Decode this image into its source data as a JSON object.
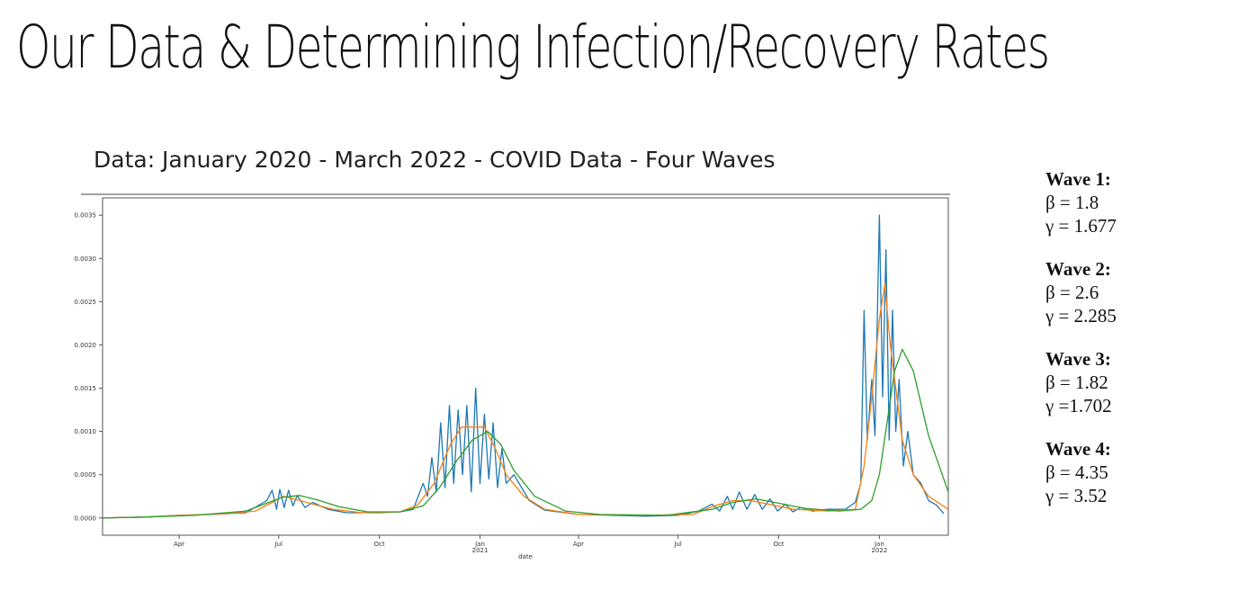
{
  "title": "Our Data & Determining Infection/Recovery Rates",
  "waves": [
    {
      "label": "Wave 1:",
      "beta": "β = 1.8",
      "gamma": "γ = 1.677"
    },
    {
      "label": "Wave 2:",
      "beta": "β = 2.6",
      "gamma": "γ = 2.285"
    },
    {
      "label": "Wave 3:",
      "beta": "β = 1.82",
      "gamma": "γ =1.702"
    },
    {
      "label": "Wave 4:",
      "beta": "β = 4.35",
      "gamma": "γ = 3.52"
    }
  ],
  "chart_data": {
    "type": "line",
    "title": "Data: January 2020 - March 2022 - COVID Data - Four Waves",
    "xlabel": "date",
    "ylabel": "",
    "xlim": [
      "2020-01-22",
      "2022-03-05"
    ],
    "ylim": [
      -0.0002,
      0.0037
    ],
    "grid": false,
    "legend": "none",
    "yticks": [
      "0.0000",
      "0.0005",
      "0.0010",
      "0.0015",
      "0.0020",
      "0.0025",
      "0.0030",
      "0.0035"
    ],
    "ytick_values": [
      0,
      0.0005,
      0.001,
      0.0015,
      0.002,
      0.0025,
      0.003,
      0.0035
    ],
    "xticks": [
      {
        "date": "2020-04-01",
        "label": "Apr",
        "sub": ""
      },
      {
        "date": "2020-07-01",
        "label": "Jul",
        "sub": ""
      },
      {
        "date": "2020-10-01",
        "label": "Oct",
        "sub": ""
      },
      {
        "date": "2021-01-01",
        "label": "Jan",
        "sub": "2021"
      },
      {
        "date": "2021-04-01",
        "label": "Apr",
        "sub": ""
      },
      {
        "date": "2021-07-01",
        "label": "Jul",
        "sub": ""
      },
      {
        "date": "2021-10-01",
        "label": "Oct",
        "sub": ""
      },
      {
        "date": "2022-01-01",
        "label": "Jan",
        "sub": "2022"
      }
    ],
    "series": [
      {
        "color": "#1f77b4",
        "points": [
          [
            "2020-01-22",
            0
          ],
          [
            "2020-03-01",
            1e-05
          ],
          [
            "2020-04-01",
            3e-05
          ],
          [
            "2020-05-01",
            4e-05
          ],
          [
            "2020-06-01",
            6e-05
          ],
          [
            "2020-06-20",
            0.0002
          ],
          [
            "2020-06-25",
            0.00032
          ],
          [
            "2020-06-29",
            0.0001
          ],
          [
            "2020-07-02",
            0.00033
          ],
          [
            "2020-07-06",
            0.00012
          ],
          [
            "2020-07-10",
            0.00032
          ],
          [
            "2020-07-14",
            0.00014
          ],
          [
            "2020-07-18",
            0.00026
          ],
          [
            "2020-07-25",
            0.00012
          ],
          [
            "2020-08-01",
            0.00018
          ],
          [
            "2020-08-15",
            0.0001
          ],
          [
            "2020-09-01",
            6e-05
          ],
          [
            "2020-10-01",
            6e-05
          ],
          [
            "2020-10-20",
            7e-05
          ],
          [
            "2020-11-01",
            0.0001
          ],
          [
            "2020-11-10",
            0.0004
          ],
          [
            "2020-11-14",
            0.00025
          ],
          [
            "2020-11-18",
            0.0007
          ],
          [
            "2020-11-22",
            0.0003
          ],
          [
            "2020-11-26",
            0.0011
          ],
          [
            "2020-11-30",
            0.00035
          ],
          [
            "2020-12-04",
            0.0013
          ],
          [
            "2020-12-08",
            0.0004
          ],
          [
            "2020-12-12",
            0.00125
          ],
          [
            "2020-12-16",
            0.0005
          ],
          [
            "2020-12-20",
            0.0013
          ],
          [
            "2020-12-24",
            0.0003
          ],
          [
            "2020-12-28",
            0.0015
          ],
          [
            "2021-01-01",
            0.0004
          ],
          [
            "2021-01-05",
            0.0012
          ],
          [
            "2021-01-09",
            0.00045
          ],
          [
            "2021-01-13",
            0.0011
          ],
          [
            "2021-01-17",
            0.00035
          ],
          [
            "2021-01-21",
            0.0008
          ],
          [
            "2021-01-25",
            0.0004
          ],
          [
            "2021-02-01",
            0.0005
          ],
          [
            "2021-02-15",
            0.0002
          ],
          [
            "2021-03-01",
            9e-05
          ],
          [
            "2021-04-01",
            4e-05
          ],
          [
            "2021-05-01",
            3e-05
          ],
          [
            "2021-06-01",
            2e-05
          ],
          [
            "2021-07-01",
            3e-05
          ],
          [
            "2021-07-20",
            8e-05
          ],
          [
            "2021-08-01",
            0.00016
          ],
          [
            "2021-08-08",
            8e-05
          ],
          [
            "2021-08-15",
            0.00025
          ],
          [
            "2021-08-20",
            0.0001
          ],
          [
            "2021-08-26",
            0.0003
          ],
          [
            "2021-09-02",
            0.0001
          ],
          [
            "2021-09-09",
            0.00027
          ],
          [
            "2021-09-16",
            0.0001
          ],
          [
            "2021-09-23",
            0.00022
          ],
          [
            "2021-09-30",
            8e-05
          ],
          [
            "2021-10-07",
            0.00016
          ],
          [
            "2021-10-14",
            7e-05
          ],
          [
            "2021-10-21",
            0.00012
          ],
          [
            "2021-11-01",
            8e-05
          ],
          [
            "2021-11-15",
            0.0001
          ],
          [
            "2021-12-01",
            0.0001
          ],
          [
            "2021-12-10",
            0.00018
          ],
          [
            "2021-12-15",
            0.0004
          ],
          [
            "2021-12-18",
            0.0024
          ],
          [
            "2021-12-21",
            0.0009
          ],
          [
            "2021-12-25",
            0.0016
          ],
          [
            "2021-12-28",
            0.00095
          ],
          [
            "2022-01-01",
            0.0035
          ],
          [
            "2022-01-04",
            0.0014
          ],
          [
            "2022-01-07",
            0.0031
          ],
          [
            "2022-01-10",
            0.0009
          ],
          [
            "2022-01-13",
            0.0024
          ],
          [
            "2022-01-16",
            0.001
          ],
          [
            "2022-01-19",
            0.0016
          ],
          [
            "2022-01-23",
            0.0006
          ],
          [
            "2022-01-27",
            0.001
          ],
          [
            "2022-02-01",
            0.0005
          ],
          [
            "2022-02-08",
            0.0004
          ],
          [
            "2022-02-15",
            0.0002
          ],
          [
            "2022-02-22",
            0.00015
          ],
          [
            "2022-03-01",
            5e-05
          ]
        ]
      },
      {
        "color": "#ff7f0e",
        "points": [
          [
            "2020-01-22",
            0
          ],
          [
            "2020-03-01",
            1e-05
          ],
          [
            "2020-04-01",
            3e-05
          ],
          [
            "2020-05-15",
            5e-05
          ],
          [
            "2020-06-10",
            8e-05
          ],
          [
            "2020-06-25",
            0.00018
          ],
          [
            "2020-07-05",
            0.00025
          ],
          [
            "2020-07-15",
            0.00022
          ],
          [
            "2020-08-01",
            0.00016
          ],
          [
            "2020-08-20",
            0.0001
          ],
          [
            "2020-09-15",
            6e-05
          ],
          [
            "2020-10-20",
            7e-05
          ],
          [
            "2020-11-05",
            0.00015
          ],
          [
            "2020-11-20",
            0.0004
          ],
          [
            "2020-12-05",
            0.00085
          ],
          [
            "2020-12-15",
            0.00105
          ],
          [
            "2020-12-25",
            0.00105
          ],
          [
            "2021-01-05",
            0.00105
          ],
          [
            "2021-01-15",
            0.0008
          ],
          [
            "2021-01-25",
            0.0005
          ],
          [
            "2021-02-10",
            0.00025
          ],
          [
            "2021-03-01",
            0.0001
          ],
          [
            "2021-04-01",
            4e-05
          ],
          [
            "2021-06-01",
            3e-05
          ],
          [
            "2021-07-15",
            4e-05
          ],
          [
            "2021-08-01",
            0.00013
          ],
          [
            "2021-08-20",
            0.0002
          ],
          [
            "2021-09-05",
            0.0002
          ],
          [
            "2021-09-25",
            0.00015
          ],
          [
            "2021-10-15",
            0.0001
          ],
          [
            "2021-11-15",
            8e-05
          ],
          [
            "2021-12-10",
            0.0001
          ],
          [
            "2021-12-18",
            0.0006
          ],
          [
            "2021-12-25",
            0.0014
          ],
          [
            "2022-01-01",
            0.0023
          ],
          [
            "2022-01-06",
            0.0027
          ],
          [
            "2022-01-11",
            0.002
          ],
          [
            "2022-01-16",
            0.0015
          ],
          [
            "2022-01-22",
            0.0009
          ],
          [
            "2022-02-01",
            0.0005
          ],
          [
            "2022-02-15",
            0.00025
          ],
          [
            "2022-03-05",
            0.0001
          ]
        ]
      },
      {
        "color": "#2ca02c",
        "points": [
          [
            "2020-01-22",
            0
          ],
          [
            "2020-03-01",
            1e-05
          ],
          [
            "2020-04-15",
            3e-05
          ],
          [
            "2020-06-01",
            8e-05
          ],
          [
            "2020-06-20",
            0.00017
          ],
          [
            "2020-07-05",
            0.00024
          ],
          [
            "2020-07-20",
            0.00026
          ],
          [
            "2020-08-05",
            0.00021
          ],
          [
            "2020-08-25",
            0.00013
          ],
          [
            "2020-09-20",
            7e-05
          ],
          [
            "2020-10-20",
            7e-05
          ],
          [
            "2020-11-10",
            0.00014
          ],
          [
            "2020-11-25",
            0.00035
          ],
          [
            "2020-12-10",
            0.00065
          ],
          [
            "2020-12-25",
            0.0009
          ],
          [
            "2021-01-08",
            0.001
          ],
          [
            "2021-01-20",
            0.00085
          ],
          [
            "2021-02-01",
            0.00055
          ],
          [
            "2021-02-20",
            0.00025
          ],
          [
            "2021-03-20",
            8e-05
          ],
          [
            "2021-04-20",
            4e-05
          ],
          [
            "2021-06-20",
            3e-05
          ],
          [
            "2021-08-01",
            0.0001
          ],
          [
            "2021-08-20",
            0.00018
          ],
          [
            "2021-09-10",
            0.00022
          ],
          [
            "2021-10-01",
            0.00017
          ],
          [
            "2021-10-25",
            0.00011
          ],
          [
            "2021-11-25",
            8e-05
          ],
          [
            "2021-12-15",
            0.0001
          ],
          [
            "2021-12-25",
            0.0002
          ],
          [
            "2022-01-01",
            0.0005
          ],
          [
            "2022-01-08",
            0.0011
          ],
          [
            "2022-01-15",
            0.0017
          ],
          [
            "2022-01-22",
            0.00195
          ],
          [
            "2022-02-01",
            0.0017
          ],
          [
            "2022-02-15",
            0.00095
          ],
          [
            "2022-03-05",
            0.0003
          ]
        ]
      }
    ]
  }
}
